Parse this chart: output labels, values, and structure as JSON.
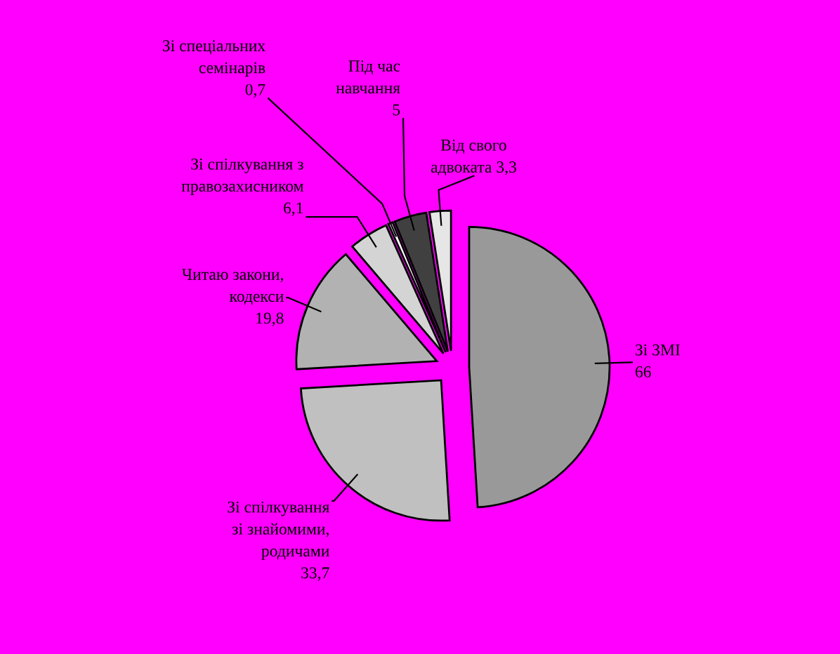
{
  "chart_data": {
    "type": "pie",
    "categories": [
      "Зі ЗМІ",
      "Зі спілкування зі знайомими, родичами",
      "Читаю закони, кодекси",
      "Зі спілкування з правозахисником",
      "Зі спеціальних семінарів",
      "Під час навчання",
      "Від свого адвоката"
    ],
    "values": [
      66,
      33.7,
      19.8,
      6.1,
      0.7,
      5,
      3.3
    ],
    "value_labels": [
      "66",
      "33,7",
      "19,8",
      "6,1",
      "0,7",
      "5",
      "3,3"
    ],
    "colors": [
      "#999999",
      "#c0c0c0",
      "#b2b2b2",
      "#d4d4d4",
      "#ffffff",
      "#404040",
      "#e6e6e6"
    ],
    "legend": false
  }
}
